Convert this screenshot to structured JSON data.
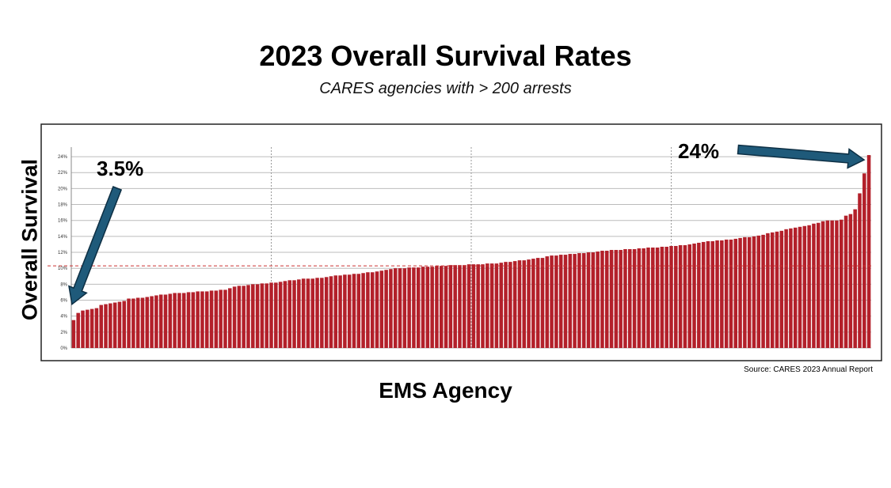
{
  "colors": {
    "bar": "#b3202a",
    "arrow_fill": "#1f5a7a",
    "arrow_stroke": "#0d2f44",
    "reference_line": "#cc3333",
    "grid": "#bbbbbb"
  },
  "chart_data": {
    "type": "bar",
    "title": "2023 Overall Survival Rates",
    "subtitle": "CARES agencies with > 200 arrests",
    "xlabel": "EMS Agency",
    "ylabel": "Overall Survival",
    "ylim": [
      0,
      25
    ],
    "yticks": [
      0,
      2,
      4,
      6,
      8,
      10,
      12,
      14,
      16,
      18,
      20,
      22,
      24
    ],
    "ytick_labels": [
      "0%",
      "2%",
      "4%",
      "6%",
      "8%",
      "10%",
      "12%",
      "14%",
      "16%",
      "18%",
      "20%",
      "22%",
      "24%"
    ],
    "grid": true,
    "reference_line": 10.3,
    "values": [
      3.5,
      4.4,
      4.7,
      4.8,
      4.9,
      5.0,
      5.4,
      5.5,
      5.6,
      5.7,
      5.8,
      5.9,
      6.2,
      6.2,
      6.3,
      6.3,
      6.4,
      6.5,
      6.6,
      6.7,
      6.7,
      6.8,
      6.9,
      6.9,
      6.9,
      7.0,
      7.0,
      7.1,
      7.1,
      7.1,
      7.2,
      7.2,
      7.3,
      7.3,
      7.5,
      7.7,
      7.8,
      7.8,
      7.9,
      8.0,
      8.0,
      8.1,
      8.1,
      8.2,
      8.2,
      8.3,
      8.4,
      8.5,
      8.5,
      8.6,
      8.7,
      8.7,
      8.7,
      8.8,
      8.8,
      8.9,
      9.0,
      9.1,
      9.1,
      9.2,
      9.2,
      9.3,
      9.3,
      9.4,
      9.5,
      9.5,
      9.6,
      9.7,
      9.8,
      9.9,
      10.0,
      10.0,
      10.0,
      10.1,
      10.1,
      10.1,
      10.2,
      10.2,
      10.2,
      10.3,
      10.3,
      10.3,
      10.4,
      10.4,
      10.4,
      10.4,
      10.5,
      10.5,
      10.5,
      10.5,
      10.6,
      10.6,
      10.6,
      10.7,
      10.8,
      10.8,
      10.9,
      11.0,
      11.0,
      11.1,
      11.2,
      11.3,
      11.3,
      11.5,
      11.6,
      11.6,
      11.7,
      11.7,
      11.8,
      11.8,
      11.9,
      11.9,
      12.0,
      12.0,
      12.1,
      12.2,
      12.2,
      12.3,
      12.3,
      12.3,
      12.4,
      12.4,
      12.4,
      12.5,
      12.5,
      12.6,
      12.6,
      12.6,
      12.7,
      12.7,
      12.8,
      12.8,
      12.9,
      12.9,
      13.0,
      13.1,
      13.2,
      13.3,
      13.4,
      13.4,
      13.5,
      13.5,
      13.6,
      13.6,
      13.7,
      13.8,
      13.9,
      13.9,
      14.0,
      14.1,
      14.2,
      14.4,
      14.5,
      14.6,
      14.7,
      14.9,
      15.0,
      15.1,
      15.2,
      15.3,
      15.4,
      15.6,
      15.7,
      15.9,
      16.0,
      16.0,
      16.0,
      16.1,
      16.6,
      16.8,
      17.4,
      19.4,
      21.9,
      24.2
    ],
    "annotations": [
      {
        "text": "3.5%",
        "points_to": "min"
      },
      {
        "text": "24%",
        "points_to": "max"
      }
    ],
    "source": "Source: CARES 2023 Annual Report"
  }
}
